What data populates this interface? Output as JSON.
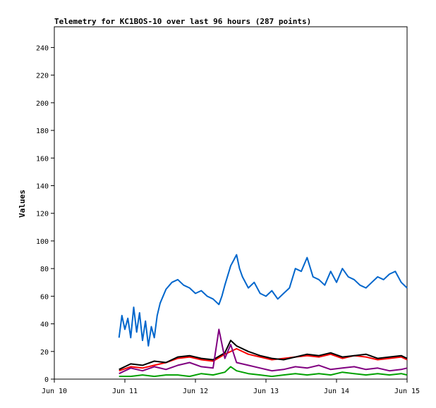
{
  "chart_data": {
    "type": "line",
    "title": "Telemetry for KC1BOS-10 over last 96 hours (287 points)",
    "xlabel": "",
    "ylabel": "Values",
    "x_ticks": [
      "Jun 10",
      "Jun 11",
      "Jun 12",
      "Jun 13",
      "Jun 14",
      "Jun 15"
    ],
    "xlim": [
      "Jun 10 00:00",
      "Jun 15 00:00"
    ],
    "ylim": [
      0,
      255
    ],
    "y_ticks": [
      0,
      20,
      40,
      60,
      80,
      100,
      120,
      140,
      160,
      180,
      200,
      220,
      240
    ],
    "grid": false,
    "legend": "none",
    "series": [
      {
        "color": "#0066cc",
        "x_hours_since_jun10": [
          22,
          23,
          24,
          25,
          26,
          27,
          28,
          29,
          30,
          31,
          32,
          33,
          34,
          35,
          36,
          38,
          40,
          42,
          44,
          46,
          48,
          50,
          52,
          54,
          56,
          57,
          58,
          60,
          61,
          62,
          63,
          64,
          66,
          68,
          70,
          72,
          74,
          76,
          78,
          80,
          82,
          84,
          86,
          88,
          90,
          92,
          94,
          96,
          98,
          100,
          102,
          104,
          106,
          108,
          110,
          112,
          114,
          116,
          118,
          120
        ],
        "values": [
          30,
          46,
          36,
          44,
          30,
          52,
          34,
          48,
          28,
          42,
          24,
          38,
          30,
          46,
          55,
          65,
          70,
          72,
          68,
          66,
          62,
          64,
          60,
          58,
          54,
          60,
          68,
          82,
          86,
          90,
          80,
          74,
          66,
          70,
          62,
          60,
          64,
          58,
          62,
          66,
          80,
          78,
          88,
          74,
          72,
          68,
          78,
          70,
          80,
          74,
          72,
          68,
          66,
          70,
          74,
          72,
          76,
          78,
          70,
          66
        ]
      },
      {
        "color": "#ff0000",
        "x_hours_since_jun10": [
          22,
          26,
          30,
          34,
          38,
          42,
          46,
          50,
          54,
          58,
          62,
          66,
          70,
          74,
          78,
          82,
          86,
          90,
          94,
          98,
          102,
          106,
          110,
          114,
          118,
          120
        ],
        "values": [
          6,
          9,
          8,
          10,
          12,
          15,
          16,
          14,
          13,
          18,
          22,
          18,
          16,
          14,
          15,
          16,
          17,
          16,
          18,
          15,
          17,
          16,
          14,
          15,
          16,
          14
        ]
      },
      {
        "color": "#000000",
        "x_hours_since_jun10": [
          22,
          26,
          30,
          34,
          38,
          42,
          46,
          50,
          54,
          58,
          60,
          62,
          66,
          70,
          74,
          78,
          82,
          86,
          90,
          94,
          98,
          102,
          106,
          110,
          114,
          118,
          120
        ],
        "values": [
          7,
          11,
          10,
          13,
          12,
          16,
          17,
          15,
          14,
          19,
          28,
          24,
          20,
          17,
          15,
          14,
          16,
          18,
          17,
          19,
          16,
          17,
          18,
          15,
          16,
          17,
          15
        ]
      },
      {
        "color": "#800080",
        "x_hours_since_jun10": [
          22,
          26,
          30,
          34,
          38,
          42,
          46,
          50,
          54,
          56,
          58,
          60,
          62,
          66,
          70,
          74,
          78,
          82,
          86,
          90,
          94,
          98,
          102,
          106,
          110,
          114,
          118,
          120
        ],
        "values": [
          4,
          8,
          6,
          9,
          7,
          10,
          12,
          9,
          8,
          36,
          15,
          25,
          12,
          10,
          8,
          6,
          7,
          9,
          8,
          10,
          7,
          8,
          9,
          7,
          8,
          6,
          7,
          8
        ]
      },
      {
        "color": "#00a000",
        "x_hours_since_jun10": [
          22,
          26,
          30,
          34,
          38,
          42,
          46,
          50,
          54,
          58,
          60,
          62,
          66,
          70,
          74,
          78,
          82,
          86,
          90,
          94,
          98,
          102,
          106,
          110,
          114,
          118,
          120
        ],
        "values": [
          2,
          2,
          3,
          2,
          3,
          3,
          2,
          4,
          3,
          5,
          9,
          6,
          4,
          3,
          2,
          3,
          4,
          3,
          4,
          3,
          5,
          4,
          3,
          4,
          3,
          4,
          3
        ]
      }
    ]
  }
}
